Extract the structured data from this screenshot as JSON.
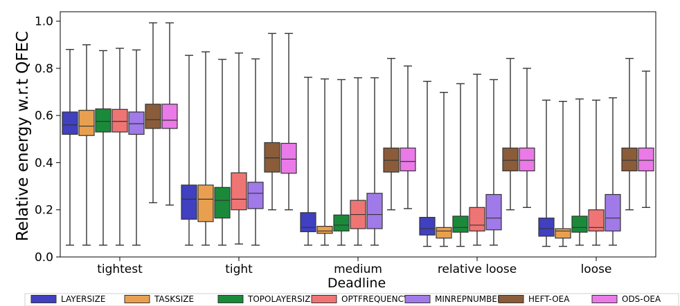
{
  "chart_data": {
    "type": "boxplot",
    "title": "",
    "xlabel": "Deadline",
    "ylabel": "Relative energy w.r.t QFEC",
    "ylim": [
      0.0,
      1.04
    ],
    "yticks": [
      "0.0",
      "0.2",
      "0.4",
      "0.6",
      "0.8",
      "1.0"
    ],
    "grid": false,
    "legend_position": "bottom",
    "categories": [
      "tightest",
      "tight",
      "medium",
      "relative loose",
      "loose"
    ],
    "series": [
      {
        "name": "LAYERSIZE",
        "color": "#4040c0",
        "boxes": [
          {
            "whislo": 0.05,
            "q1": 0.52,
            "med": 0.56,
            "q3": 0.615,
            "whishi": 0.88
          },
          {
            "whislo": 0.05,
            "q1": 0.16,
            "med": 0.245,
            "q3": 0.305,
            "whishi": 0.855
          },
          {
            "whislo": 0.05,
            "q1": 0.107,
            "med": 0.125,
            "q3": 0.188,
            "whishi": 0.762
          },
          {
            "whislo": 0.045,
            "q1": 0.093,
            "med": 0.12,
            "q3": 0.168,
            "whishi": 0.745
          },
          {
            "whislo": 0.045,
            "q1": 0.088,
            "med": 0.12,
            "q3": 0.165,
            "whishi": 0.665
          }
        ]
      },
      {
        "name": "TASKSIZE",
        "color": "#e8a050",
        "boxes": [
          {
            "whislo": 0.05,
            "q1": 0.515,
            "med": 0.555,
            "q3": 0.622,
            "whishi": 0.9
          },
          {
            "whislo": 0.05,
            "q1": 0.15,
            "med": 0.245,
            "q3": 0.305,
            "whishi": 0.87
          },
          {
            "whislo": 0.05,
            "q1": 0.1,
            "med": 0.11,
            "q3": 0.13,
            "whishi": 0.755
          },
          {
            "whislo": 0.045,
            "q1": 0.08,
            "med": 0.11,
            "q3": 0.125,
            "whishi": 0.698
          },
          {
            "whislo": 0.045,
            "q1": 0.08,
            "med": 0.11,
            "q3": 0.12,
            "whishi": 0.66
          }
        ]
      },
      {
        "name": "TOPOLAYERSIZE",
        "color": "#1a8a3a",
        "boxes": [
          {
            "whislo": 0.05,
            "q1": 0.53,
            "med": 0.575,
            "q3": 0.628,
            "whishi": 0.875
          },
          {
            "whislo": 0.05,
            "q1": 0.165,
            "med": 0.24,
            "q3": 0.295,
            "whishi": 0.838
          },
          {
            "whislo": 0.05,
            "q1": 0.11,
            "med": 0.135,
            "q3": 0.178,
            "whishi": 0.752
          },
          {
            "whislo": 0.045,
            "q1": 0.105,
            "med": 0.125,
            "q3": 0.173,
            "whishi": 0.735
          },
          {
            "whislo": 0.05,
            "q1": 0.105,
            "med": 0.125,
            "q3": 0.173,
            "whishi": 0.67
          }
        ]
      },
      {
        "name": "OPTFREQUENCY",
        "color": "#ef7575",
        "boxes": [
          {
            "whislo": 0.05,
            "q1": 0.53,
            "med": 0.575,
            "q3": 0.626,
            "whishi": 0.885
          },
          {
            "whislo": 0.055,
            "q1": 0.2,
            "med": 0.245,
            "q3": 0.357,
            "whishi": 0.865
          },
          {
            "whislo": 0.05,
            "q1": 0.12,
            "med": 0.18,
            "q3": 0.24,
            "whishi": 0.76
          },
          {
            "whislo": 0.05,
            "q1": 0.11,
            "med": 0.135,
            "q3": 0.21,
            "whishi": 0.775
          },
          {
            "whislo": 0.05,
            "q1": 0.11,
            "med": 0.125,
            "q3": 0.2,
            "whishi": 0.665
          }
        ]
      },
      {
        "name": "MINREPNUMBER",
        "color": "#a07ae8",
        "boxes": [
          {
            "whislo": 0.05,
            "q1": 0.52,
            "med": 0.565,
            "q3": 0.615,
            "whishi": 0.878
          },
          {
            "whislo": 0.05,
            "q1": 0.205,
            "med": 0.27,
            "q3": 0.317,
            "whishi": 0.84
          },
          {
            "whislo": 0.05,
            "q1": 0.12,
            "med": 0.18,
            "q3": 0.27,
            "whishi": 0.76
          },
          {
            "whislo": 0.05,
            "q1": 0.115,
            "med": 0.165,
            "q3": 0.265,
            "whishi": 0.752
          },
          {
            "whislo": 0.05,
            "q1": 0.11,
            "med": 0.165,
            "q3": 0.265,
            "whishi": 0.675
          }
        ]
      },
      {
        "name": "HEFT-OEA",
        "color": "#8a5c3a",
        "boxes": [
          {
            "whislo": 0.23,
            "q1": 0.545,
            "med": 0.582,
            "q3": 0.648,
            "whishi": 0.993
          },
          {
            "whislo": 0.2,
            "q1": 0.36,
            "med": 0.42,
            "q3": 0.485,
            "whishi": 0.948
          },
          {
            "whislo": 0.2,
            "q1": 0.36,
            "med": 0.41,
            "q3": 0.462,
            "whishi": 0.842
          },
          {
            "whislo": 0.2,
            "q1": 0.365,
            "med": 0.41,
            "q3": 0.462,
            "whishi": 0.842
          },
          {
            "whislo": 0.2,
            "q1": 0.365,
            "med": 0.41,
            "q3": 0.462,
            "whishi": 0.842
          }
        ]
      },
      {
        "name": "ODS-OEA",
        "color": "#ea7ae8",
        "boxes": [
          {
            "whislo": 0.22,
            "q1": 0.545,
            "med": 0.58,
            "q3": 0.648,
            "whishi": 0.993
          },
          {
            "whislo": 0.2,
            "q1": 0.355,
            "med": 0.415,
            "q3": 0.482,
            "whishi": 0.948
          },
          {
            "whislo": 0.205,
            "q1": 0.365,
            "med": 0.405,
            "q3": 0.462,
            "whishi": 0.81
          },
          {
            "whislo": 0.21,
            "q1": 0.365,
            "med": 0.41,
            "q3": 0.462,
            "whishi": 0.8
          },
          {
            "whislo": 0.21,
            "q1": 0.365,
            "med": 0.41,
            "q3": 0.462,
            "whishi": 0.788
          }
        ]
      }
    ]
  }
}
